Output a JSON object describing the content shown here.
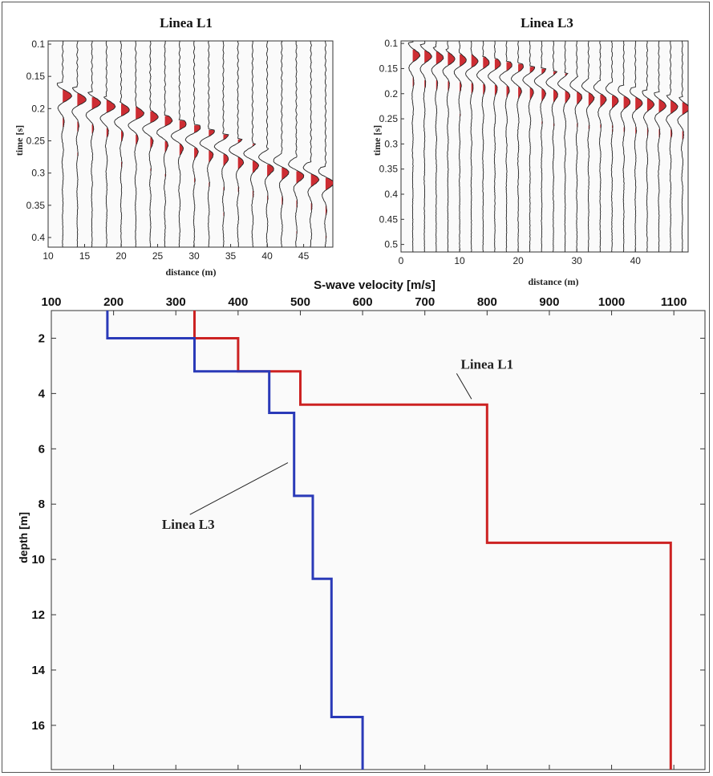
{
  "chart_data": [
    {
      "type": "seismogram",
      "title": "Linea L1",
      "xlabel": "distance (m)",
      "ylabel": "time [s]",
      "xlim": [
        10,
        49
      ],
      "ylim": [
        0.415,
        0.095
      ],
      "xticks": [
        "10",
        "15",
        "20",
        "25",
        "30",
        "35",
        "40",
        "45"
      ],
      "xtick_values": [
        10,
        15,
        20,
        25,
        30,
        35,
        40,
        45
      ],
      "yticks": [
        "0.1",
        "0.15",
        "0.2",
        "0.25",
        "0.3",
        "0.35",
        "0.4"
      ],
      "ytick_values": [
        0.1,
        0.15,
        0.2,
        0.25,
        0.3,
        0.35,
        0.4
      ],
      "traces_x": [
        12,
        14,
        16,
        18,
        20,
        22,
        24,
        26,
        28,
        30,
        32,
        34,
        36,
        38,
        40,
        42,
        44,
        46,
        48
      ],
      "first_arrival": {
        "x": [
          12,
          48
        ],
        "t": [
          0.17,
          0.3
        ]
      },
      "trace_color": "#222222",
      "fill_color": "#c8161d"
    },
    {
      "type": "seismogram",
      "title": "Linea L3",
      "xlabel": "distance (m)",
      "ylabel": "time [s]",
      "xlim": [
        0,
        49
      ],
      "ylim": [
        0.515,
        0.095
      ],
      "xticks": [
        "0",
        "10",
        "20",
        "30",
        "40"
      ],
      "xtick_values": [
        0,
        10,
        20,
        30,
        40
      ],
      "yticks": [
        "0.1",
        "0.15",
        "0.2",
        "0.25",
        "0.3",
        "0.35",
        "0.4",
        "0.45",
        "0.5"
      ],
      "ytick_values": [
        0.1,
        0.15,
        0.2,
        0.25,
        0.3,
        0.35,
        0.4,
        0.45,
        0.5
      ],
      "traces_x": [
        2,
        4,
        6,
        8,
        10,
        12,
        14,
        16,
        18,
        20,
        22,
        24,
        26,
        28,
        30,
        32,
        34,
        36,
        38,
        40,
        42,
        44,
        46,
        48
      ],
      "first_arrival": {
        "x": [
          2,
          48
        ],
        "t": [
          0.11,
          0.22
        ]
      },
      "trace_color": "#222222",
      "fill_color": "#c8161d"
    },
    {
      "type": "line",
      "title": "S-wave velocity [m/s]",
      "xlabel": "S-wave velocity [m/s]",
      "ylabel": "depth [m]",
      "xlim": [
        100,
        1150
      ],
      "ylim": [
        1,
        17.6
      ],
      "x_axis_position": "top",
      "y_inverted": true,
      "xticks": [
        "100",
        "200",
        "300",
        "400",
        "500",
        "600",
        "700",
        "800",
        "900",
        "1000",
        "1100"
      ],
      "xtick_values": [
        100,
        200,
        300,
        400,
        500,
        600,
        700,
        800,
        900,
        1000,
        1100
      ],
      "yticks": [
        "2",
        "4",
        "6",
        "8",
        "10",
        "12",
        "14",
        "16"
      ],
      "ytick_values": [
        2,
        4,
        6,
        8,
        10,
        12,
        14,
        16
      ],
      "series": [
        {
          "name": "Linea L1",
          "color": "#cc2222",
          "x": [
            330,
            330,
            400,
            400,
            500,
            500,
            800,
            800,
            1095,
            1095
          ],
          "y": [
            1,
            2,
            2,
            3.2,
            3.2,
            4.4,
            4.4,
            9.4,
            9.4,
            17.6
          ]
        },
        {
          "name": "Linea L3",
          "color": "#2a3ab8",
          "x": [
            190,
            190,
            330,
            330,
            450,
            450,
            490,
            490,
            520,
            520,
            550,
            550,
            600,
            600
          ],
          "y": [
            1,
            2,
            2,
            3.2,
            3.2,
            4.7,
            4.7,
            7.7,
            7.7,
            10.7,
            10.7,
            15.7,
            15.7,
            17.6
          ]
        }
      ],
      "annotations": [
        {
          "text": "Linea L1",
          "x": 800,
          "y": 3.1,
          "arrow_to": {
            "x": 775,
            "y": 4.2
          }
        },
        {
          "text": "Linea L3",
          "x": 320,
          "y": 8.9,
          "arrow_to": {
            "x": 480,
            "y": 6.5
          }
        }
      ]
    }
  ]
}
